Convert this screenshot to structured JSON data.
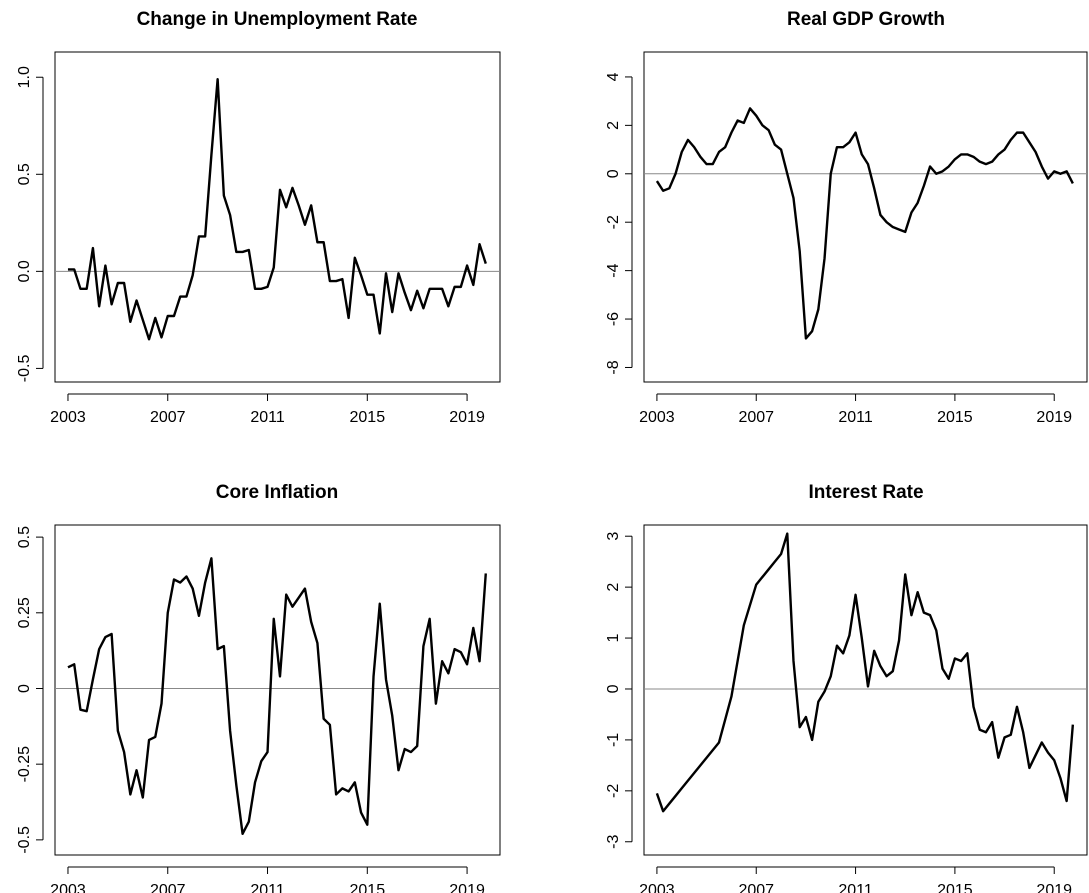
{
  "chart_data": [
    {
      "type": "line",
      "title": "Change in Unemployment Rate",
      "x": [
        2003,
        2003.25,
        2003.5,
        2003.75,
        2004,
        2004.25,
        2004.5,
        2004.75,
        2005,
        2005.25,
        2005.5,
        2005.75,
        2006,
        2006.25,
        2006.5,
        2006.75,
        2007,
        2007.25,
        2007.5,
        2007.75,
        2008,
        2008.25,
        2008.5,
        2008.75,
        2009,
        2009.25,
        2009.5,
        2009.75,
        2010,
        2010.25,
        2010.5,
        2010.75,
        2011,
        2011.25,
        2011.5,
        2011.75,
        2012,
        2012.25,
        2012.5,
        2012.75,
        2013,
        2013.25,
        2013.5,
        2013.75,
        2014,
        2014.25,
        2014.5,
        2014.75,
        2015,
        2015.25,
        2015.5,
        2015.75,
        2016,
        2016.25,
        2016.5,
        2016.75,
        2017,
        2017.25,
        2017.5,
        2017.75,
        2018,
        2018.25,
        2018.5,
        2018.75,
        2019,
        2019.25,
        2019.5,
        2019.75
      ],
      "values": [
        0.01,
        0.01,
        -0.09,
        -0.09,
        0.12,
        -0.18,
        0.03,
        -0.17,
        -0.06,
        -0.06,
        -0.26,
        -0.15,
        -0.25,
        -0.35,
        -0.24,
        -0.34,
        -0.23,
        -0.23,
        -0.13,
        -0.13,
        -0.02,
        0.18,
        0.18,
        0.6,
        0.99,
        0.39,
        0.29,
        0.1,
        0.1,
        0.11,
        -0.09,
        -0.09,
        -0.08,
        0.02,
        0.42,
        0.33,
        0.43,
        0.34,
        0.24,
        0.34,
        0.15,
        0.15,
        -0.05,
        -0.05,
        -0.04,
        -0.24,
        0.07,
        -0.02,
        -0.12,
        -0.12,
        -0.32,
        -0.01,
        -0.21,
        -0.01,
        -0.11,
        -0.2,
        -0.1,
        -0.19,
        -0.09,
        -0.09,
        -0.09,
        -0.18,
        -0.08,
        -0.08,
        0.03,
        -0.07,
        0.14,
        0.04
      ],
      "color": "#000000",
      "hline": 0,
      "xlim": [
        2002.48,
        2020.32
      ],
      "xticks": [
        2003,
        2007,
        2011,
        2015,
        2019
      ],
      "ylim": [
        -0.57,
        1.13
      ],
      "yticks": [
        -0.5,
        {
          "value": 0,
          "label": "0.0"
        },
        0.5,
        {
          "value": 1,
          "label": "1.0"
        }
      ]
    },
    {
      "type": "line",
      "title": "Real GDP Growth",
      "x": [
        2003,
        2003.25,
        2003.5,
        2003.75,
        2004,
        2004.25,
        2004.5,
        2004.75,
        2005,
        2005.25,
        2005.5,
        2005.75,
        2006,
        2006.25,
        2006.5,
        2006.75,
        2007,
        2007.25,
        2007.5,
        2007.75,
        2008,
        2008.25,
        2008.5,
        2008.75,
        2009,
        2009.25,
        2009.5,
        2009.75,
        2010,
        2010.25,
        2010.5,
        2010.75,
        2011,
        2011.25,
        2011.5,
        2011.75,
        2012,
        2012.25,
        2012.5,
        2012.75,
        2013,
        2013.25,
        2013.5,
        2013.75,
        2014,
        2014.25,
        2014.5,
        2014.75,
        2015,
        2015.25,
        2015.5,
        2015.75,
        2016,
        2016.25,
        2016.5,
        2016.75,
        2017,
        2017.25,
        2017.5,
        2017.75,
        2018,
        2018.25,
        2018.5,
        2018.75,
        2019,
        2019.25,
        2019.5,
        2019.75
      ],
      "values": [
        -0.3,
        -0.7,
        -0.6,
        0,
        0.9,
        1.4,
        1.1,
        0.7,
        0.4,
        0.4,
        0.9,
        1.1,
        1.7,
        2.2,
        2.1,
        2.7,
        2.4,
        2.0,
        1.8,
        1.2,
        1.0,
        0,
        -1.0,
        -3.2,
        -6.8,
        -6.5,
        -5.6,
        -3.5,
        0,
        1.1,
        1.1,
        1.3,
        1.7,
        0.8,
        0.4,
        -0.6,
        -1.7,
        -2.0,
        -2.2,
        -2.3,
        -2.4,
        -1.6,
        -1.2,
        -0.5,
        0.3,
        0,
        0.1,
        0.3,
        0.6,
        0.8,
        0.8,
        0.7,
        0.5,
        0.4,
        0.5,
        0.8,
        1.0,
        1.4,
        1.7,
        1.7,
        1.3,
        0.9,
        0.3,
        -0.2,
        0.1,
        0,
        0.1,
        -0.4
      ],
      "color": "#000000",
      "hline": 0,
      "xlim": [
        2002.48,
        2020.32
      ],
      "xticks": [
        2003,
        2007,
        2011,
        2015,
        2019
      ],
      "ylim": [
        -8.6,
        5.03
      ],
      "yticks": [
        -8,
        -6,
        -4,
        -2,
        0,
        2,
        4
      ]
    },
    {
      "type": "line",
      "title": "Core Inflation",
      "x": [
        2003,
        2003.25,
        2003.5,
        2003.75,
        2004,
        2004.25,
        2004.5,
        2004.75,
        2005,
        2005.25,
        2005.5,
        2005.75,
        2006,
        2006.25,
        2006.5,
        2006.75,
        2007,
        2007.25,
        2007.5,
        2007.75,
        2008,
        2008.25,
        2008.5,
        2008.75,
        2009,
        2009.25,
        2009.5,
        2009.75,
        2010,
        2010.25,
        2010.5,
        2010.75,
        2011,
        2011.25,
        2011.5,
        2011.75,
        2012,
        2012.25,
        2012.5,
        2012.75,
        2013,
        2013.25,
        2013.5,
        2013.75,
        2014,
        2014.25,
        2014.5,
        2014.75,
        2015,
        2015.25,
        2015.5,
        2015.75,
        2016,
        2016.25,
        2016.5,
        2016.75,
        2017,
        2017.25,
        2017.5,
        2017.75,
        2018,
        2018.25,
        2018.5,
        2018.75,
        2019,
        2019.25,
        2019.5,
        2019.75
      ],
      "values": [
        0.07,
        0.08,
        -0.07,
        -0.075,
        0.03,
        0.13,
        0.17,
        0.18,
        -0.14,
        -0.21,
        -0.35,
        -0.27,
        -0.36,
        -0.17,
        -0.16,
        -0.05,
        0.25,
        0.36,
        0.35,
        0.37,
        0.33,
        0.24,
        0.35,
        0.43,
        0.13,
        0.14,
        -0.14,
        -0.32,
        -0.48,
        -0.44,
        -0.31,
        -0.24,
        -0.21,
        0.23,
        0.04,
        0.31,
        0.27,
        0.3,
        0.33,
        0.22,
        0.15,
        -0.1,
        -0.12,
        -0.35,
        -0.33,
        -0.34,
        -0.31,
        -0.41,
        -0.45,
        0.04,
        0.28,
        0.03,
        -0.09,
        -0.27,
        -0.2,
        -0.21,
        -0.19,
        0.14,
        0.23,
        -0.05,
        0.09,
        0.05,
        0.13,
        0.12,
        0.08,
        0.2,
        0.09,
        0.38
      ],
      "color": "#000000",
      "hline": 0,
      "xlim": [
        2002.48,
        2020.32
      ],
      "xticks": [
        2003,
        2007,
        2011,
        2015,
        2019
      ],
      "ylim": [
        -0.55,
        0.54
      ],
      "yticks": [
        -0.5,
        -0.25,
        0,
        0.25,
        0.5
      ]
    },
    {
      "type": "line",
      "title": "Interest Rate",
      "x": [
        2003,
        2003.25,
        2003.5,
        2003.75,
        2004,
        2004.25,
        2004.5,
        2004.75,
        2005,
        2005.25,
        2005.5,
        2005.75,
        2006,
        2006.25,
        2006.5,
        2006.75,
        2007,
        2007.25,
        2007.5,
        2007.75,
        2008,
        2008.25,
        2008.5,
        2008.75,
        2009,
        2009.25,
        2009.5,
        2009.75,
        2010,
        2010.25,
        2010.5,
        2010.75,
        2011,
        2011.25,
        2011.5,
        2011.75,
        2012,
        2012.25,
        2012.5,
        2012.75,
        2013,
        2013.25,
        2013.5,
        2013.75,
        2014,
        2014.25,
        2014.5,
        2014.75,
        2015,
        2015.25,
        2015.5,
        2015.75,
        2016,
        2016.25,
        2016.5,
        2016.75,
        2017,
        2017.25,
        2017.5,
        2017.75,
        2018,
        2018.25,
        2018.5,
        2018.75,
        2019,
        2019.25,
        2019.5,
        2019.75
      ],
      "values": [
        -2.05,
        -2.4,
        -2.25,
        -2.1,
        -1.95,
        -1.8,
        -1.65,
        -1.5,
        -1.35,
        -1.2,
        -1.05,
        -0.6,
        -0.15,
        0.55,
        1.25,
        1.65,
        2.05,
        2.2,
        2.35,
        2.5,
        2.65,
        3.05,
        0.55,
        -0.75,
        -0.55,
        -1.0,
        -0.25,
        -0.05,
        0.25,
        0.85,
        0.7,
        1.05,
        1.85,
        1.0,
        0.05,
        0.75,
        0.45,
        0.25,
        0.35,
        0.95,
        2.25,
        1.45,
        1.9,
        1.5,
        1.45,
        1.15,
        0.4,
        0.2,
        0.6,
        0.55,
        0.7,
        -0.35,
        -0.8,
        -0.85,
        -0.65,
        -1.35,
        -0.95,
        -0.9,
        -0.35,
        -0.85,
        -1.55,
        -1.3,
        -1.05,
        -1.25,
        -1.4,
        -1.75,
        -2.2,
        -0.7
      ],
      "color": "#000000",
      "hline": 0,
      "xlim": [
        2002.48,
        2020.32
      ],
      "xticks": [
        2003,
        2007,
        2011,
        2015,
        2019
      ],
      "ylim": [
        -3.26,
        3.22
      ],
      "yticks": [
        -3,
        -2,
        -1,
        0,
        1,
        2,
        3
      ]
    }
  ]
}
